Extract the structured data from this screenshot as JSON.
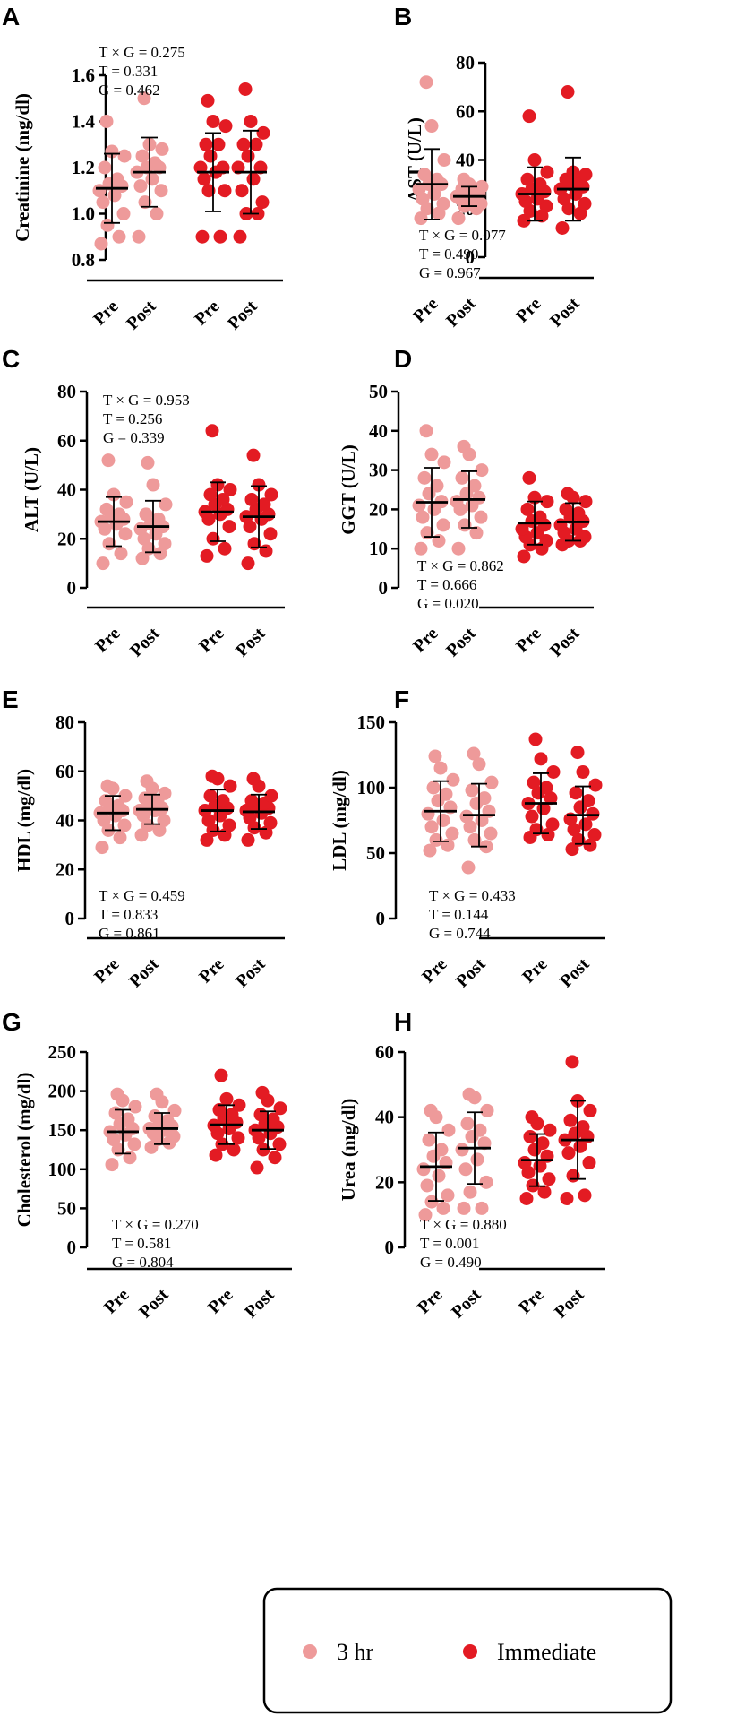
{
  "chart_data": [
    {
      "panel": "A",
      "type": "scatter",
      "title": "",
      "xlabel": "",
      "ylabel": "Creatinine (mg/dl)",
      "ylim": [
        0.8,
        1.6
      ],
      "yticks": [
        0.8,
        1.0,
        1.2,
        1.4,
        1.6
      ],
      "ytick_labels": [
        "0.8",
        "1.0",
        "1.2",
        "1.4",
        "1.6"
      ],
      "categories": [
        "Pre",
        "Post",
        "Pre",
        "Post"
      ],
      "stats": [
        "T × G = 0.275",
        "T = 0.331",
        "G = 0.462"
      ],
      "stats_position": "top-left",
      "series": [
        {
          "name": "3 hr",
          "group": "Pre",
          "mean": 1.11,
          "sd": 0.15,
          "points": [
            0.87,
            0.9,
            0.95,
            1.0,
            1.05,
            1.08,
            1.1,
            1.12,
            1.13,
            1.15,
            1.2,
            1.25,
            1.27,
            1.4
          ]
        },
        {
          "name": "3 hr",
          "group": "Post",
          "mean": 1.18,
          "sd": 0.15,
          "points": [
            0.9,
            1.0,
            1.05,
            1.1,
            1.12,
            1.15,
            1.18,
            1.2,
            1.2,
            1.22,
            1.25,
            1.28,
            1.3,
            1.5
          ]
        },
        {
          "name": "Immediate",
          "group": "Pre",
          "mean": 1.18,
          "sd": 0.17,
          "points": [
            0.9,
            0.9,
            1.1,
            1.1,
            1.15,
            1.18,
            1.2,
            1.2,
            1.25,
            1.3,
            1.3,
            1.38,
            1.4,
            1.49
          ]
        },
        {
          "name": "Immediate",
          "group": "Post",
          "mean": 1.18,
          "sd": 0.18,
          "points": [
            0.9,
            1.0,
            1.0,
            1.05,
            1.1,
            1.15,
            1.2,
            1.2,
            1.25,
            1.3,
            1.3,
            1.35,
            1.4,
            1.54
          ]
        }
      ]
    },
    {
      "panel": "B",
      "type": "scatter",
      "title": "",
      "xlabel": "",
      "ylabel": "AST (U/L)",
      "ylim": [
        0,
        80
      ],
      "yticks": [
        0,
        20,
        40,
        60,
        80
      ],
      "ytick_labels": [
        "0",
        "20",
        "40",
        "60",
        "80"
      ],
      "categories": [
        "Pre",
        "Post",
        "Pre",
        "Post"
      ],
      "stats": [
        "T × G = 0.077",
        "T = 0.490",
        "G = 0.967"
      ],
      "stats_position": "bottom-left",
      "series": [
        {
          "name": "3 hr",
          "group": "Pre",
          "mean": 30,
          "sd": 14.5,
          "points": [
            16,
            18,
            20,
            22,
            24,
            26,
            28,
            30,
            30,
            32,
            34,
            40,
            54,
            72
          ]
        },
        {
          "name": "3 hr",
          "group": "Post",
          "mean": 25,
          "sd": 4,
          "points": [
            16,
            20,
            21,
            22,
            24,
            24,
            25,
            26,
            26,
            27,
            28,
            29,
            30,
            32
          ]
        },
        {
          "name": "Immediate",
          "group": "Pre",
          "mean": 26,
          "sd": 11,
          "points": [
            15,
            17,
            19,
            21,
            23,
            24,
            26,
            27,
            28,
            30,
            32,
            35,
            40,
            58
          ]
        },
        {
          "name": "Immediate",
          "group": "Post",
          "mean": 28,
          "sd": 13,
          "points": [
            12,
            18,
            20,
            22,
            24,
            26,
            28,
            29,
            30,
            31,
            32,
            34,
            35,
            68
          ]
        }
      ]
    },
    {
      "panel": "C",
      "type": "scatter",
      "title": "",
      "xlabel": "",
      "ylabel": "ALT (U/L)",
      "ylim": [
        0,
        80
      ],
      "yticks": [
        0,
        20,
        40,
        60,
        80
      ],
      "ytick_labels": [
        "0",
        "20",
        "40",
        "60",
        "80"
      ],
      "categories": [
        "Pre",
        "Post",
        "Pre",
        "Post"
      ],
      "stats": [
        "T × G = 0.953",
        "T = 0.256",
        "G = 0.339"
      ],
      "stats_position": "top-left",
      "series": [
        {
          "name": "3 hr",
          "group": "Pre",
          "mean": 27,
          "sd": 10,
          "points": [
            10,
            14,
            18,
            22,
            24,
            26,
            27,
            28,
            29,
            30,
            32,
            35,
            38,
            52
          ]
        },
        {
          "name": "3 hr",
          "group": "Post",
          "mean": 25,
          "sd": 10.5,
          "points": [
            12,
            14,
            16,
            18,
            20,
            22,
            24,
            25,
            26,
            28,
            30,
            34,
            42,
            51
          ]
        },
        {
          "name": "Immediate",
          "group": "Pre",
          "mean": 31,
          "sd": 12,
          "points": [
            13,
            16,
            20,
            25,
            28,
            30,
            31,
            32,
            34,
            36,
            38,
            40,
            42,
            64
          ]
        },
        {
          "name": "Immediate",
          "group": "Post",
          "mean": 29,
          "sd": 12.5,
          "points": [
            10,
            15,
            18,
            22,
            25,
            28,
            29,
            30,
            32,
            34,
            36,
            38,
            42,
            54
          ]
        }
      ]
    },
    {
      "panel": "D",
      "type": "scatter",
      "title": "",
      "xlabel": "",
      "ylabel": "GGT (U/L)",
      "ylim": [
        0,
        50
      ],
      "yticks": [
        0,
        10,
        20,
        30,
        40,
        50
      ],
      "ytick_labels": [
        "0",
        "10",
        "20",
        "30",
        "40",
        "50"
      ],
      "categories": [
        "Pre",
        "Post",
        "Pre",
        "Post"
      ],
      "stats": [
        "T × G = 0.862",
        "T = 0.666",
        "G = 0.020"
      ],
      "stats_position": "bottom-left",
      "series": [
        {
          "name": "3 hr",
          "group": "Pre",
          "mean": 21.8,
          "sd": 8.8,
          "points": [
            10,
            12,
            14,
            16,
            18,
            20,
            21,
            22,
            24,
            26,
            28,
            32,
            34,
            40
          ]
        },
        {
          "name": "3 hr",
          "group": "Post",
          "mean": 22.5,
          "sd": 7.2,
          "points": [
            10,
            14,
            16,
            18,
            20,
            21,
            22,
            23,
            24,
            26,
            28,
            30,
            34,
            36
          ]
        },
        {
          "name": "Immediate",
          "group": "Pre",
          "mean": 16.5,
          "sd": 5.5,
          "points": [
            8,
            10,
            11,
            12,
            13,
            14,
            15,
            16,
            17,
            18,
            20,
            22,
            23,
            28
          ]
        },
        {
          "name": "Immediate",
          "group": "Post",
          "mean": 16.8,
          "sd": 4.8,
          "points": [
            11,
            12,
            12,
            13,
            14,
            15,
            16,
            17,
            18,
            19,
            20,
            22,
            23,
            24
          ]
        }
      ]
    },
    {
      "panel": "E",
      "type": "scatter",
      "title": "",
      "xlabel": "",
      "ylabel": "HDL (mg/dl)",
      "ylim": [
        0,
        80
      ],
      "yticks": [
        0,
        20,
        40,
        60,
        80
      ],
      "ytick_labels": [
        "0",
        "20",
        "40",
        "60",
        "80"
      ],
      "categories": [
        "Pre",
        "Post",
        "Pre",
        "Post"
      ],
      "stats": [
        "T × G = 0.459",
        "T = 0.833",
        "G = 0.861"
      ],
      "stats_position": "bottom-left",
      "series": [
        {
          "name": "3 hr",
          "group": "Pre",
          "mean": 43,
          "sd": 7,
          "points": [
            29,
            33,
            36,
            38,
            40,
            42,
            43,
            44,
            45,
            46,
            48,
            50,
            53,
            54
          ]
        },
        {
          "name": "3 hr",
          "group": "Post",
          "mean": 44.5,
          "sd": 6,
          "points": [
            34,
            36,
            38,
            40,
            42,
            44,
            44,
            45,
            46,
            48,
            49,
            51,
            53,
            56
          ]
        },
        {
          "name": "Immediate",
          "group": "Pre",
          "mean": 44,
          "sd": 8.5,
          "points": [
            32,
            34,
            36,
            38,
            40,
            42,
            44,
            45,
            46,
            48,
            50,
            54,
            57,
            58
          ]
        },
        {
          "name": "Immediate",
          "group": "Post",
          "mean": 43.5,
          "sd": 7,
          "points": [
            32,
            35,
            37,
            39,
            41,
            43,
            44,
            45,
            46,
            47,
            48,
            50,
            54,
            57
          ]
        }
      ]
    },
    {
      "panel": "F",
      "type": "scatter",
      "title": "",
      "xlabel": "",
      "ylabel": "LDL (mg/dl)",
      "ylim": [
        0,
        150
      ],
      "yticks": [
        0,
        50,
        100,
        150
      ],
      "ytick_labels": [
        "0",
        "50",
        "100",
        "150"
      ],
      "categories": [
        "Pre",
        "Post",
        "Pre",
        "Post"
      ],
      "stats": [
        "T × G = 0.433",
        "T = 0.144",
        "G = 0.744"
      ],
      "stats_position": "bottom-left",
      "series": [
        {
          "name": "3 hr",
          "group": "Pre",
          "mean": 82,
          "sd": 23,
          "points": [
            52,
            56,
            60,
            65,
            70,
            75,
            80,
            85,
            90,
            95,
            100,
            106,
            115,
            124
          ]
        },
        {
          "name": "3 hr",
          "group": "Post",
          "mean": 79,
          "sd": 24,
          "points": [
            39,
            55,
            60,
            65,
            70,
            75,
            78,
            82,
            88,
            92,
            98,
            104,
            118,
            126
          ]
        },
        {
          "name": "Immediate",
          "group": "Pre",
          "mean": 88,
          "sd": 23,
          "points": [
            62,
            64,
            68,
            72,
            78,
            84,
            88,
            92,
            96,
            100,
            104,
            112,
            122,
            137
          ]
        },
        {
          "name": "Immediate",
          "group": "Post",
          "mean": 79,
          "sd": 22,
          "points": [
            53,
            56,
            60,
            64,
            68,
            72,
            76,
            80,
            85,
            90,
            96,
            102,
            112,
            127
          ]
        }
      ]
    },
    {
      "panel": "G",
      "type": "scatter",
      "title": "",
      "xlabel": "",
      "ylabel": "Cholesterol (mg/dl)",
      "ylim": [
        0,
        250
      ],
      "yticks": [
        0,
        50,
        100,
        150,
        200,
        250
      ],
      "ytick_labels": [
        "0",
        "50",
        "100",
        "150",
        "200",
        "250"
      ],
      "categories": [
        "Pre",
        "Post",
        "Pre",
        "Post"
      ],
      "stats": [
        "T × G = 0.270",
        "T = 0.581",
        "G = 0.804"
      ],
      "stats_position": "bottom-left",
      "series": [
        {
          "name": "3 hr",
          "group": "Pre",
          "mean": 148,
          "sd": 28,
          "points": [
            106,
            115,
            125,
            132,
            138,
            144,
            148,
            152,
            158,
            164,
            172,
            180,
            188,
            196
          ]
        },
        {
          "name": "3 hr",
          "group": "Post",
          "mean": 152,
          "sd": 20,
          "points": [
            128,
            134,
            138,
            142,
            146,
            150,
            152,
            155,
            158,
            162,
            168,
            175,
            186,
            196
          ]
        },
        {
          "name": "Immediate",
          "group": "Pre",
          "mean": 157,
          "sd": 25,
          "points": [
            118,
            125,
            132,
            140,
            146,
            152,
            156,
            160,
            165,
            170,
            176,
            182,
            190,
            220
          ]
        },
        {
          "name": "Immediate",
          "group": "Post",
          "mean": 150,
          "sd": 24,
          "points": [
            102,
            115,
            125,
            132,
            140,
            146,
            150,
            154,
            158,
            164,
            170,
            178,
            188,
            198
          ]
        }
      ]
    },
    {
      "panel": "H",
      "type": "scatter",
      "title": "",
      "xlabel": "",
      "ylabel": "Urea (mg/dl)",
      "ylim": [
        0,
        60
      ],
      "yticks": [
        0,
        20,
        40,
        60
      ],
      "ytick_labels": [
        "0",
        "20",
        "40",
        "60"
      ],
      "categories": [
        "Pre",
        "Post",
        "Pre",
        "Post"
      ],
      "stats": [
        "T × G = 0.880",
        "T = 0.001",
        "G = 0.490"
      ],
      "stats_position": "bottom-left",
      "series": [
        {
          "name": "3 hr",
          "group": "Pre",
          "mean": 24.8,
          "sd": 10.5,
          "points": [
            10,
            12,
            14,
            16,
            19,
            22,
            24,
            26,
            28,
            30,
            33,
            36,
            40,
            42
          ]
        },
        {
          "name": "3 hr",
          "group": "Post",
          "mean": 30.5,
          "sd": 11,
          "points": [
            12,
            12,
            17,
            20,
            24,
            27,
            30,
            32,
            34,
            36,
            38,
            42,
            46,
            47
          ]
        },
        {
          "name": "Immediate",
          "group": "Pre",
          "mean": 26.8,
          "sd": 8,
          "points": [
            15,
            17,
            19,
            21,
            23,
            25,
            26,
            28,
            30,
            32,
            34,
            36,
            38,
            40
          ]
        },
        {
          "name": "Immediate",
          "group": "Post",
          "mean": 33,
          "sd": 12,
          "points": [
            15,
            16,
            22,
            26,
            29,
            31,
            33,
            34,
            35,
            37,
            39,
            42,
            45,
            57
          ]
        }
      ]
    }
  ],
  "legend": {
    "entries": [
      {
        "label": "3 hr",
        "color": "#ee9a9a"
      },
      {
        "label": "Immediate",
        "color": "#e31b23"
      }
    ],
    "placement": "bottom-center"
  },
  "colors": {
    "three_hr": "#ee9a9a",
    "immediate": "#e31b23",
    "axis": "#000000"
  }
}
